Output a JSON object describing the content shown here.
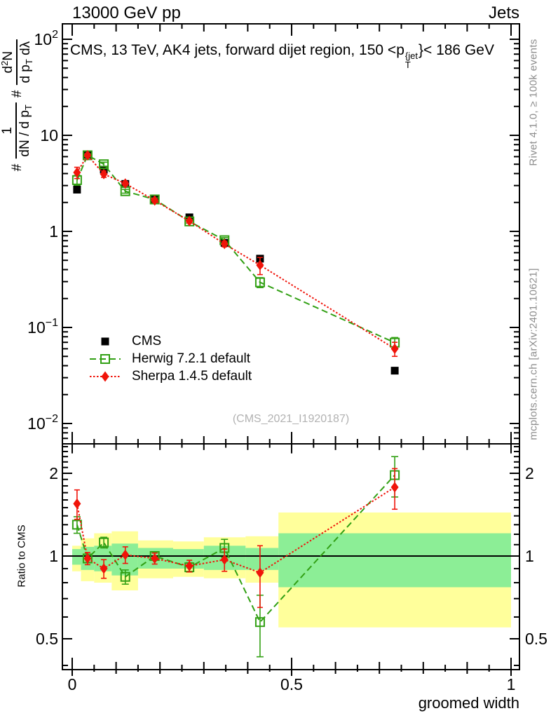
{
  "header": {
    "left": "13000 GeV pp",
    "right": "Jets"
  },
  "plot_title": {
    "prefix": "CMS, 13 TeV, AK4 jets, forward dijet region, 150 <p",
    "sup": "{jet",
    "sub": "T",
    "suffix": "}< 186 GeV"
  },
  "y_axis_formula": {
    "hash1": "#",
    "num1": "1",
    "den1": "dN / d p",
    "den1_sub": "T",
    "hash2": "#",
    "num2_base": "d",
    "num2_exp": "2",
    "num2_tail": "N",
    "den2": "d p",
    "den2_sub": "T",
    "den2_tail": " dλ"
  },
  "side_notes": {
    "top": "Rivet 4.1.0, ≥ 100k events",
    "bottom": "mcplots.cern.ch [arXiv:2401.10621]"
  },
  "watermark": "(CMS_2021_I1920187)",
  "ratio_axis_label": "Ratio to CMS",
  "x_axis_label": "groomed width",
  "colors": {
    "cms": "#000000",
    "herwig": "#32a014",
    "sherpa": "#f0140a",
    "band_yellow": "#ffff9b",
    "band_green": "#8cee96",
    "frame": "#000000"
  },
  "chart_data": {
    "type": "line",
    "panels": [
      "spectrum",
      "ratio"
    ],
    "title": "CMS, 13 TeV, AK4 jets, forward dijet region, 150 < pT^{jet} < 186 GeV",
    "xlabel": "groomed width",
    "ylabel": "# 1/(dN/dp_T) # d^2N/(dp_T dlambda)",
    "ratio_ylabel": "Ratio to CMS",
    "x_range": [
      0,
      1
    ],
    "y_range_main": [
      0.006,
      145
    ],
    "y_scale": "log",
    "ratio_range": [
      0.39,
      2.56
    ],
    "ratio_scale": "log",
    "grid": false,
    "legend_position": "inside-left-middle",
    "x": [
      0.011,
      0.035,
      0.072,
      0.121,
      0.188,
      0.267,
      0.347,
      0.428,
      0.735
    ],
    "series": [
      {
        "name": "CMS",
        "color": "#000000",
        "marker": "filled-square",
        "line": "none",
        "values": [
          2.72,
          6.3,
          4.4,
          3.12,
          2.15,
          1.4,
          0.76,
          0.52,
          0.0355
        ]
      },
      {
        "name": "Herwig 7.2.1 default",
        "color": "#32a014",
        "marker": "open-square",
        "line": "dashed",
        "values": [
          3.42,
          6.2,
          5.0,
          2.62,
          2.15,
          1.27,
          0.81,
          0.295,
          0.0695
        ],
        "errors": [
          0.4,
          0.2,
          0.25,
          0.12,
          0.08,
          0.05,
          0.05,
          0.035,
          0.009
        ],
        "ratio": [
          1.3,
          0.98,
          1.12,
          0.84,
          1.0,
          0.91,
          1.07,
          0.575,
          1.97
        ],
        "ratio_errors": [
          0.09,
          0.035,
          0.05,
          0.05,
          0.035,
          0.035,
          0.08,
          0.145,
          0.33
        ]
      },
      {
        "name": "Sherpa 1.4.5 default",
        "color": "#f0140a",
        "marker": "filled-diamond",
        "line": "dotted",
        "values": [
          4.1,
          6.2,
          3.95,
          3.15,
          2.1,
          1.28,
          0.74,
          0.445,
          0.06
        ],
        "errors": [
          0.55,
          0.25,
          0.3,
          0.15,
          0.09,
          0.06,
          0.05,
          0.09,
          0.01
        ],
        "ratio": [
          1.55,
          0.98,
          0.9,
          1.01,
          0.98,
          0.92,
          0.97,
          0.87,
          1.78
        ],
        "ratio_errors": [
          0.19,
          0.05,
          0.07,
          0.07,
          0.045,
          0.045,
          0.09,
          0.22,
          0.3
        ]
      }
    ],
    "ratio_bands": {
      "bin_edges": [
        0,
        0.02,
        0.05,
        0.09,
        0.15,
        0.23,
        0.3,
        0.395,
        0.47,
        1.0
      ],
      "yellow": [
        [
          1.09,
          0.88
        ],
        [
          1.16,
          0.81
        ],
        [
          1.21,
          0.8
        ],
        [
          1.23,
          0.75
        ],
        [
          1.14,
          0.83
        ],
        [
          1.13,
          0.84
        ],
        [
          1.17,
          0.83
        ],
        [
          1.18,
          0.8
        ],
        [
          1.44,
          0.55
        ]
      ],
      "green": [
        [
          1.06,
          0.93
        ],
        [
          1.08,
          0.89
        ],
        [
          1.09,
          0.88
        ],
        [
          1.11,
          0.85
        ],
        [
          1.07,
          0.9
        ],
        [
          1.06,
          0.9
        ],
        [
          1.09,
          0.89
        ],
        [
          1.07,
          0.89
        ],
        [
          1.21,
          0.77
        ]
      ]
    },
    "axes": {
      "main_y": {
        "ticks": [
          {
            "value": 100,
            "label": "10",
            "exp": "2"
          },
          {
            "value": 10,
            "label": "10"
          },
          {
            "value": 1,
            "label": "1"
          },
          {
            "value": 0.1,
            "label": "10",
            "exp": "−1"
          },
          {
            "value": 0.01,
            "label": "10",
            "exp": "−2"
          }
        ]
      },
      "ratio_y": {
        "ticks": [
          {
            "value": 2,
            "label": "2"
          },
          {
            "value": 1,
            "label": "1"
          },
          {
            "value": 0.5,
            "label": "0.5"
          }
        ]
      },
      "x": {
        "ticks": [
          {
            "value": 0,
            "label": "0"
          },
          {
            "value": 0.5,
            "label": "0.5"
          },
          {
            "value": 1,
            "label": "1"
          }
        ],
        "minor_step": 0.05
      }
    }
  }
}
